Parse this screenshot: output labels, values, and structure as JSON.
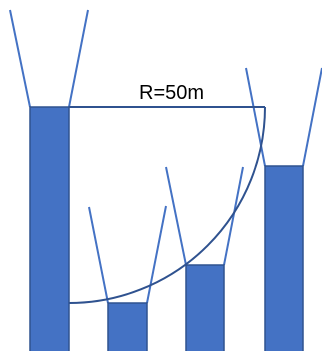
{
  "diagram": {
    "radius_label": "R=50m",
    "colors": {
      "bar_fill": "#4472C4",
      "bar_stroke": "#2F528F",
      "line": "#4472C4",
      "arc": "#2F528F",
      "text": "#000000"
    }
  }
}
